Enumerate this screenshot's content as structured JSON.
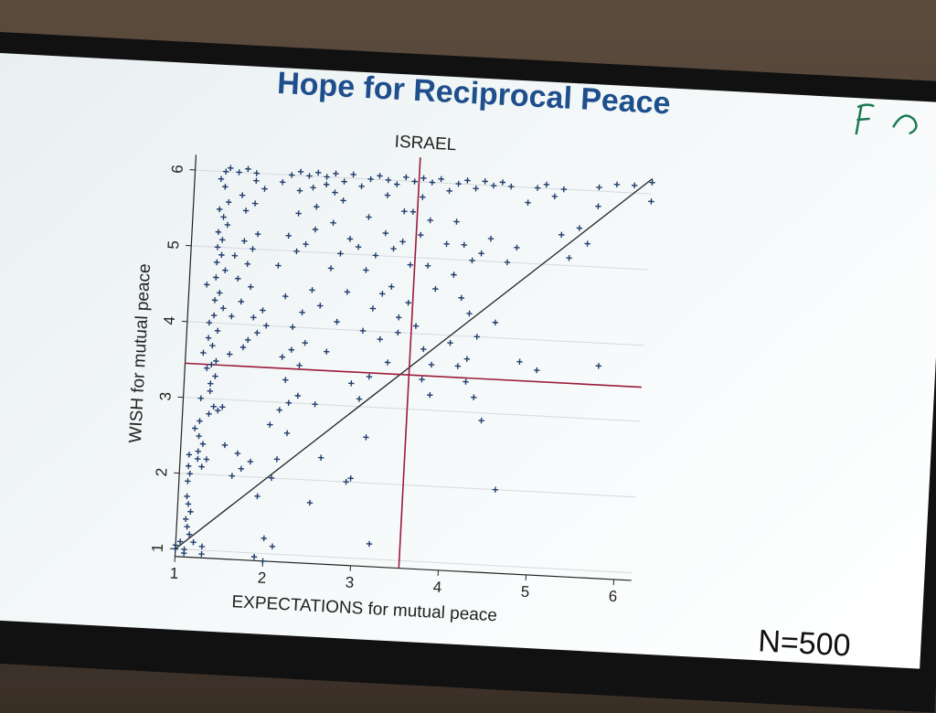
{
  "slide": {
    "title": "Hope for Reciprocal Peace",
    "n_label": "N=500"
  },
  "chart_data": {
    "type": "scatter",
    "title": "ISRAEL",
    "xlabel": "EXPECTATIONS for mutual peace",
    "ylabel": "WISH for mutual peace",
    "xlim": [
      1,
      6.2
    ],
    "ylim": [
      0.9,
      6.2
    ],
    "xticks": [
      1,
      2,
      3,
      4,
      5,
      6
    ],
    "yticks": [
      1,
      2,
      3,
      4,
      5,
      6
    ],
    "marker": "+",
    "marker_color": "#1f3a6b",
    "reference_lines": [
      {
        "type": "diagonal",
        "from": [
          1,
          1
        ],
        "to": [
          6.2,
          6.2
        ],
        "color": "#222222"
      },
      {
        "type": "vertical",
        "x": 3.55,
        "color": "#9b1b3a"
      },
      {
        "type": "horizontal",
        "y": 3.45,
        "color": "#9b1b3a"
      }
    ],
    "points": [
      [
        1.0,
        1.0
      ],
      [
        1.05,
        1.1
      ],
      [
        1.1,
        0.95
      ],
      [
        1.0,
        1.05
      ],
      [
        1.15,
        1.2
      ],
      [
        1.1,
        1.0
      ],
      [
        1.2,
        1.1
      ],
      [
        1.3,
        0.95
      ],
      [
        1.3,
        1.05
      ],
      [
        1.12,
        1.3
      ],
      [
        1.1,
        1.4
      ],
      [
        1.15,
        1.5
      ],
      [
        1.12,
        1.6
      ],
      [
        1.1,
        1.7
      ],
      [
        1.1,
        1.9
      ],
      [
        1.12,
        2.0
      ],
      [
        1.1,
        2.1
      ],
      [
        1.2,
        2.2
      ],
      [
        1.1,
        2.25
      ],
      [
        1.2,
        2.3
      ],
      [
        1.25,
        2.1
      ],
      [
        1.3,
        2.2
      ],
      [
        1.2,
        2.5
      ],
      [
        1.25,
        2.4
      ],
      [
        1.15,
        2.6
      ],
      [
        1.2,
        2.7
      ],
      [
        1.3,
        2.8
      ],
      [
        1.35,
        2.9
      ],
      [
        1.4,
        2.85
      ],
      [
        1.45,
        2.9
      ],
      [
        1.2,
        3.0
      ],
      [
        1.3,
        3.1
      ],
      [
        1.3,
        3.2
      ],
      [
        1.35,
        3.3
      ],
      [
        1.25,
        3.4
      ],
      [
        1.3,
        3.45
      ],
      [
        1.35,
        3.5
      ],
      [
        1.2,
        3.6
      ],
      [
        1.3,
        3.7
      ],
      [
        1.25,
        3.8
      ],
      [
        1.35,
        3.9
      ],
      [
        1.25,
        4.0
      ],
      [
        1.3,
        4.1
      ],
      [
        1.4,
        4.2
      ],
      [
        1.3,
        4.3
      ],
      [
        1.35,
        4.4
      ],
      [
        1.2,
        4.5
      ],
      [
        1.3,
        4.6
      ],
      [
        1.4,
        4.7
      ],
      [
        1.3,
        4.8
      ],
      [
        1.35,
        4.9
      ],
      [
        1.3,
        5.0
      ],
      [
        1.35,
        5.1
      ],
      [
        1.3,
        5.2
      ],
      [
        1.4,
        5.3
      ],
      [
        1.35,
        5.4
      ],
      [
        1.3,
        5.5
      ],
      [
        1.4,
        5.6
      ],
      [
        1.35,
        5.8
      ],
      [
        1.3,
        5.9
      ],
      [
        1.35,
        6.0
      ],
      [
        1.4,
        6.05
      ],
      [
        1.5,
        6.0
      ],
      [
        1.6,
        6.05
      ],
      [
        1.7,
        6.0
      ],
      [
        1.5,
        4.1
      ],
      [
        1.6,
        4.3
      ],
      [
        1.7,
        4.5
      ],
      [
        1.55,
        4.6
      ],
      [
        1.65,
        4.8
      ],
      [
        1.5,
        4.9
      ],
      [
        1.7,
        5.0
      ],
      [
        1.6,
        5.1
      ],
      [
        1.75,
        5.2
      ],
      [
        1.6,
        5.5
      ],
      [
        1.7,
        5.6
      ],
      [
        1.55,
        5.7
      ],
      [
        1.8,
        5.8
      ],
      [
        1.7,
        5.9
      ],
      [
        1.5,
        3.6
      ],
      [
        1.65,
        3.7
      ],
      [
        1.7,
        3.8
      ],
      [
        1.8,
        3.9
      ],
      [
        1.9,
        4.0
      ],
      [
        1.75,
        4.1
      ],
      [
        1.85,
        4.2
      ],
      [
        1.6,
        2.0
      ],
      [
        1.7,
        2.1
      ],
      [
        1.8,
        2.2
      ],
      [
        1.65,
        2.3
      ],
      [
        1.5,
        2.4
      ],
      [
        1.9,
        0.95
      ],
      [
        2.0,
        0.9
      ],
      [
        2.0,
        1.2
      ],
      [
        2.1,
        1.1
      ],
      [
        1.9,
        1.75
      ],
      [
        2.05,
        2.0
      ],
      [
        2.1,
        2.25
      ],
      [
        2.2,
        2.6
      ],
      [
        2.0,
        2.7
      ],
      [
        2.1,
        2.9
      ],
      [
        2.2,
        3.0
      ],
      [
        2.3,
        3.1
      ],
      [
        2.15,
        3.3
      ],
      [
        2.3,
        3.5
      ],
      [
        2.1,
        3.6
      ],
      [
        2.2,
        3.7
      ],
      [
        2.35,
        3.8
      ],
      [
        2.2,
        4.0
      ],
      [
        2.3,
        4.2
      ],
      [
        2.1,
        4.4
      ],
      [
        2.4,
        4.5
      ],
      [
        2.0,
        4.8
      ],
      [
        2.2,
        5.0
      ],
      [
        2.3,
        5.1
      ],
      [
        2.1,
        5.2
      ],
      [
        2.4,
        5.3
      ],
      [
        2.2,
        5.5
      ],
      [
        2.4,
        5.6
      ],
      [
        2.0,
        5.9
      ],
      [
        2.1,
        6.0
      ],
      [
        2.2,
        6.05
      ],
      [
        2.3,
        6.0
      ],
      [
        2.4,
        6.05
      ],
      [
        2.5,
        6.0
      ],
      [
        2.6,
        6.05
      ],
      [
        2.7,
        5.95
      ],
      [
        2.8,
        6.05
      ],
      [
        2.2,
        5.8
      ],
      [
        2.35,
        5.85
      ],
      [
        2.5,
        5.9
      ],
      [
        2.6,
        5.8
      ],
      [
        2.7,
        5.7
      ],
      [
        2.5,
        1.7
      ],
      [
        2.6,
        2.3
      ],
      [
        2.5,
        3.0
      ],
      [
        2.6,
        3.7
      ],
      [
        2.7,
        4.1
      ],
      [
        2.5,
        4.3
      ],
      [
        2.8,
        4.5
      ],
      [
        2.6,
        4.8
      ],
      [
        2.7,
        5.0
      ],
      [
        2.9,
        5.1
      ],
      [
        2.8,
        5.2
      ],
      [
        2.6,
        5.4
      ],
      [
        2.9,
        5.9
      ],
      [
        3.0,
        6.0
      ],
      [
        3.1,
        6.05
      ],
      [
        3.2,
        6.0
      ],
      [
        3.3,
        5.95
      ],
      [
        3.4,
        6.05
      ],
      [
        3.5,
        6.0
      ],
      [
        3.6,
        6.05
      ],
      [
        3.7,
        6.0
      ],
      [
        3.8,
        6.05
      ],
      [
        3.0,
        4.0
      ],
      [
        3.1,
        4.3
      ],
      [
        3.2,
        4.5
      ],
      [
        3.0,
        4.8
      ],
      [
        3.1,
        5.0
      ],
      [
        3.3,
        5.1
      ],
      [
        3.2,
        5.3
      ],
      [
        3.0,
        5.5
      ],
      [
        3.4,
        5.6
      ],
      [
        3.2,
        5.8
      ],
      [
        2.9,
        2.0
      ],
      [
        2.95,
        2.05
      ],
      [
        3.2,
        1.2
      ],
      [
        3.1,
        2.6
      ],
      [
        3.0,
        3.1
      ],
      [
        2.9,
        3.3
      ],
      [
        3.1,
        3.4
      ],
      [
        3.3,
        3.6
      ],
      [
        3.2,
        3.9
      ],
      [
        3.4,
        4.0
      ],
      [
        3.4,
        4.2
      ],
      [
        3.5,
        4.4
      ],
      [
        3.3,
        4.6
      ],
      [
        3.5,
        4.9
      ],
      [
        3.4,
        5.2
      ],
      [
        3.6,
        5.3
      ],
      [
        3.5,
        5.6
      ],
      [
        3.7,
        5.5
      ],
      [
        3.6,
        5.8
      ],
      [
        3.7,
        3.8
      ],
      [
        3.8,
        3.6
      ],
      [
        3.7,
        3.4
      ],
      [
        3.8,
        3.2
      ],
      [
        3.6,
        4.1
      ],
      [
        3.8,
        4.6
      ],
      [
        3.7,
        4.9
      ],
      [
        3.9,
        5.2
      ],
      [
        3.9,
        5.9
      ],
      [
        4.0,
        6.0
      ],
      [
        4.1,
        6.05
      ],
      [
        4.2,
        5.95
      ],
      [
        4.3,
        6.05
      ],
      [
        4.4,
        6.0
      ],
      [
        4.5,
        6.05
      ],
      [
        4.6,
        6.0
      ],
      [
        4.0,
        5.5
      ],
      [
        4.1,
        5.2
      ],
      [
        4.2,
        5.0
      ],
      [
        4.3,
        5.1
      ],
      [
        4.4,
        5.3
      ],
      [
        4.0,
        4.8
      ],
      [
        4.1,
        4.5
      ],
      [
        4.2,
        4.3
      ],
      [
        4.3,
        4.0
      ],
      [
        4.0,
        3.9
      ],
      [
        4.1,
        3.6
      ],
      [
        4.2,
        3.4
      ],
      [
        4.3,
        3.2
      ],
      [
        4.4,
        2.9
      ],
      [
        4.2,
        3.7
      ],
      [
        4.5,
        4.2
      ],
      [
        4.6,
        5.0
      ],
      [
        4.7,
        5.2
      ],
      [
        4.8,
        5.8
      ],
      [
        4.9,
        6.0
      ],
      [
        5.0,
        6.05
      ],
      [
        5.1,
        5.9
      ],
      [
        5.2,
        6.0
      ],
      [
        4.6,
        2.0
      ],
      [
        4.8,
        3.7
      ],
      [
        5.0,
        3.6
      ],
      [
        5.3,
        5.1
      ],
      [
        5.2,
        5.4
      ],
      [
        5.4,
        5.5
      ],
      [
        5.5,
        5.3
      ],
      [
        5.6,
        5.8
      ],
      [
        5.7,
        3.7
      ],
      [
        5.6,
        6.05
      ],
      [
        5.8,
        6.1
      ],
      [
        6.0,
        6.1
      ],
      [
        6.2,
        6.15
      ],
      [
        6.2,
        5.9
      ]
    ]
  }
}
